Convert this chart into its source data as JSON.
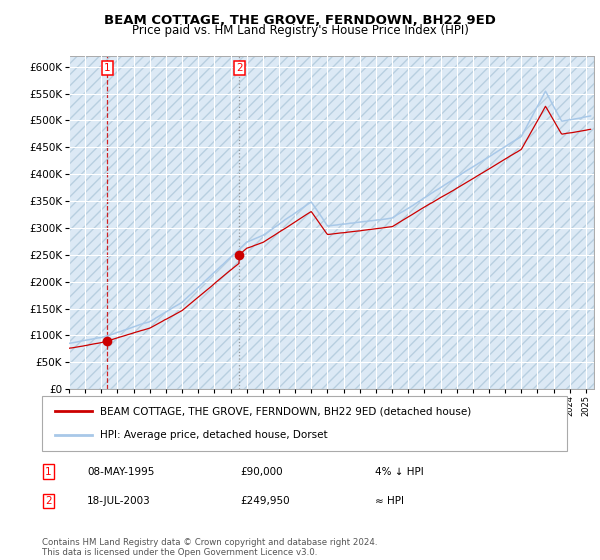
{
  "title": "BEAM COTTAGE, THE GROVE, FERNDOWN, BH22 9ED",
  "subtitle": "Price paid vs. HM Land Registry's House Price Index (HPI)",
  "ylim": [
    0,
    620000
  ],
  "xlim_start": 1993.0,
  "xlim_end": 2025.5,
  "sale1_year": 1995.36,
  "sale1_price": 90000,
  "sale2_year": 2003.55,
  "sale2_price": 249950,
  "hpi_color": "#a8c8e8",
  "house_color": "#cc0000",
  "bg_color": "#dce9f5",
  "legend_house": "BEAM COTTAGE, THE GROVE, FERNDOWN, BH22 9ED (detached house)",
  "legend_hpi": "HPI: Average price, detached house, Dorset",
  "note1_date": "08-MAY-1995",
  "note1_price": "£90,000",
  "note1_rel": "4% ↓ HPI",
  "note2_date": "18-JUL-2003",
  "note2_price": "£249,950",
  "note2_rel": "≈ HPI",
  "footer": "Contains HM Land Registry data © Crown copyright and database right 2024.\nThis data is licensed under the Open Government Licence v3.0."
}
